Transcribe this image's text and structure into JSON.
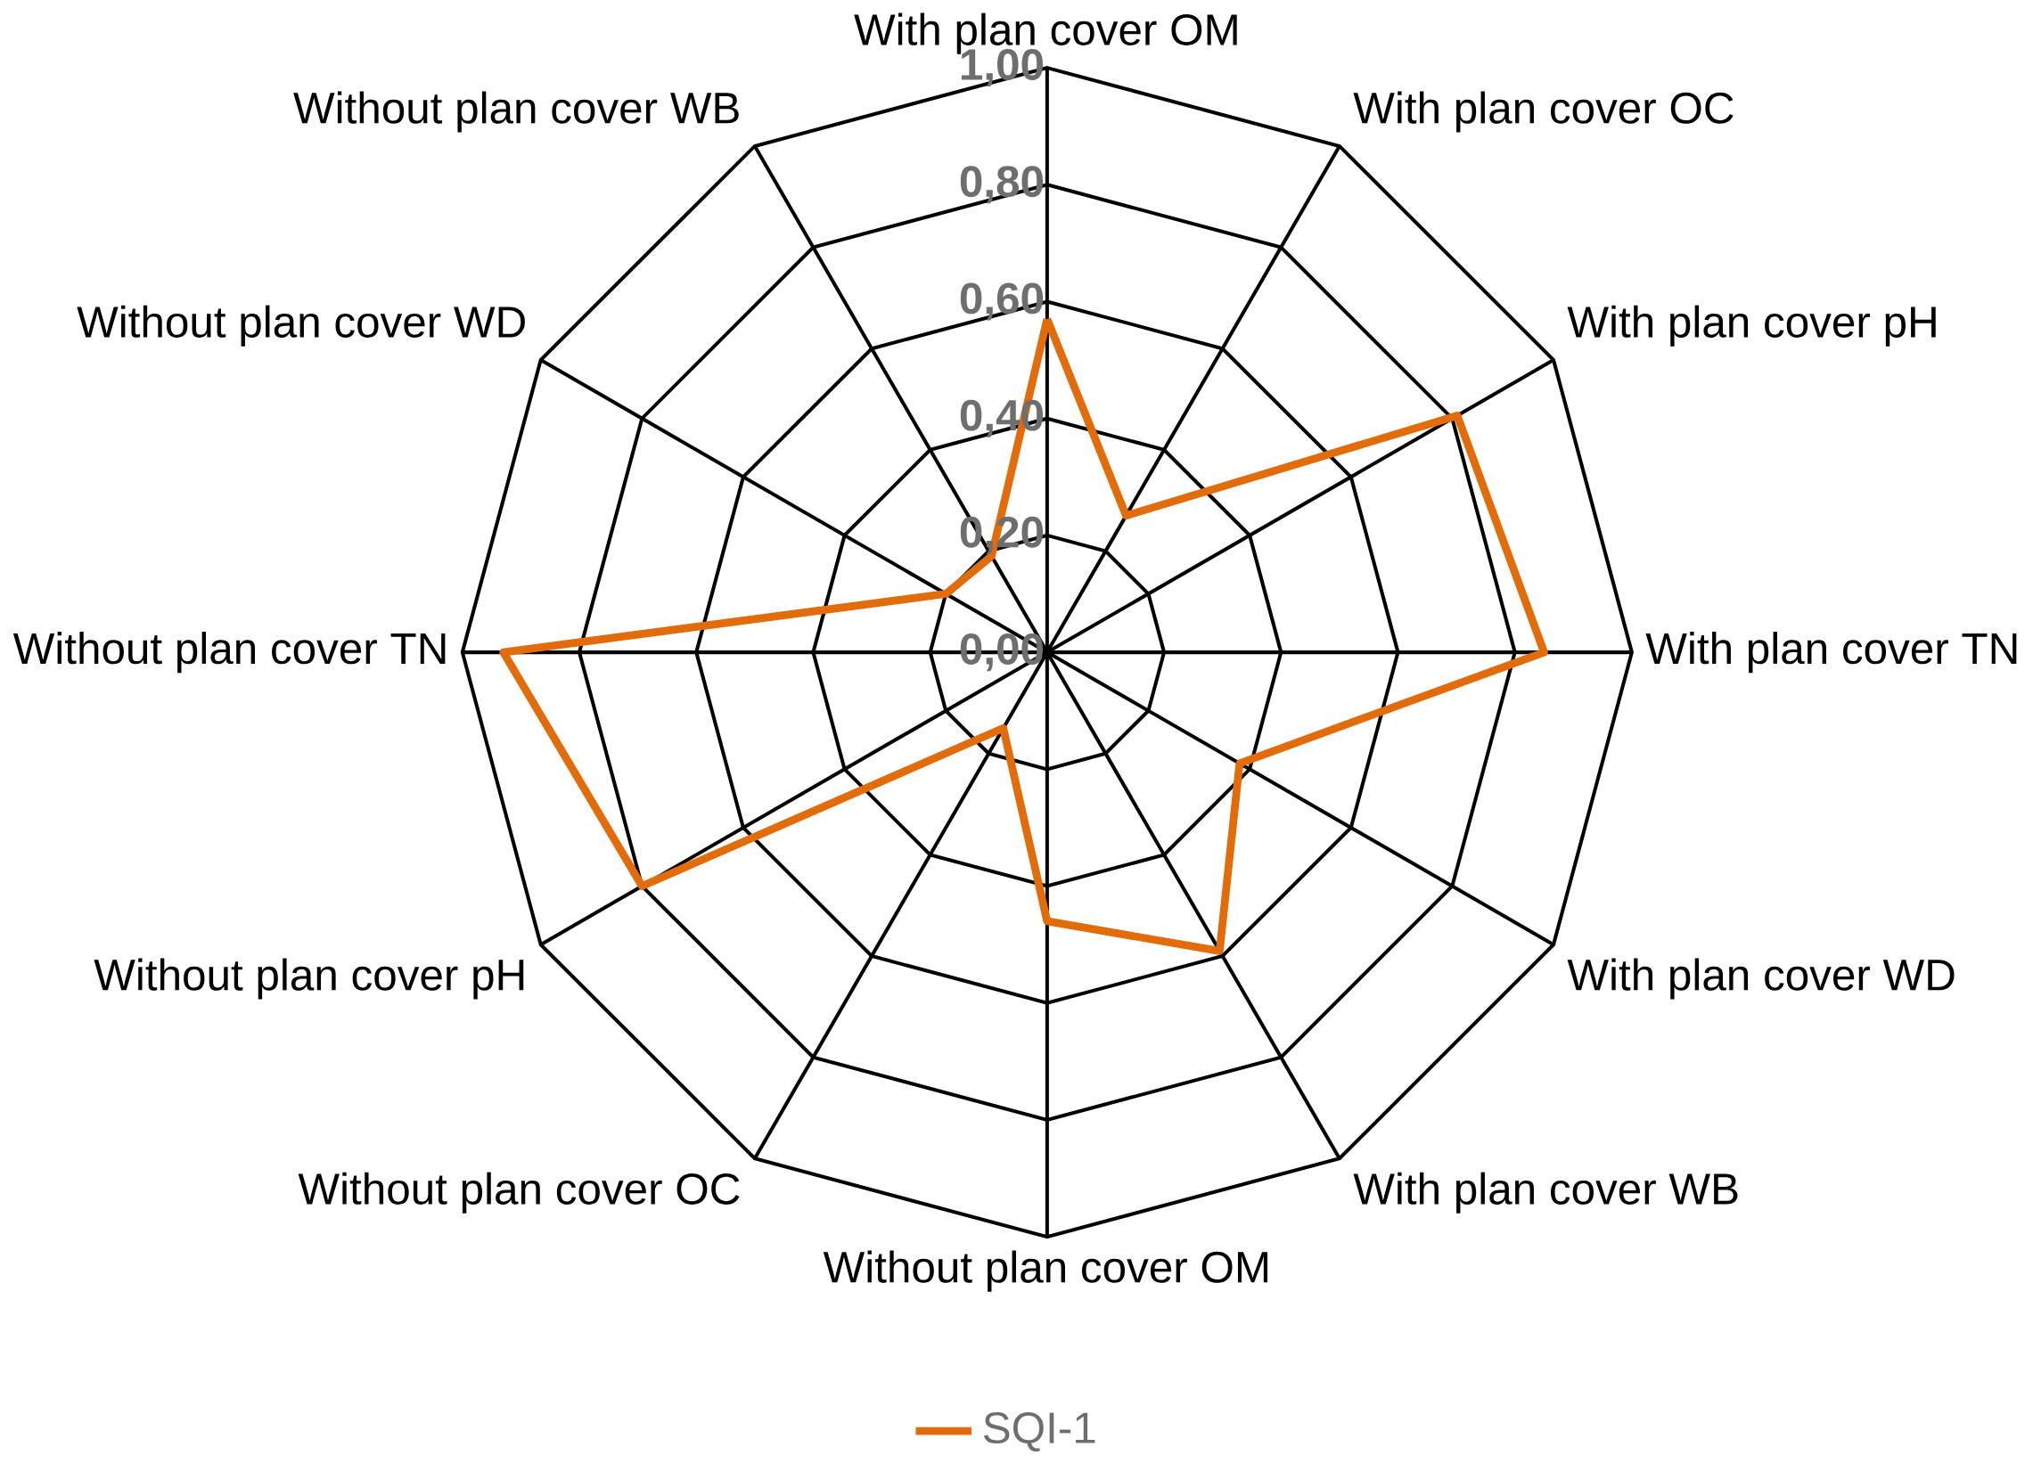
{
  "chart_data": {
    "type": "radar",
    "categories": [
      "With plan cover OM",
      "With plan cover OC",
      "With plan cover pH",
      "With plan cover TN",
      "With plan cover WD",
      "With plan cover WB",
      "Without plan cover OM",
      "Without plan cover OC",
      "Without plan cover pH",
      "Without plan cover TN",
      "Without plan cover WD",
      "Without plan cover WB"
    ],
    "series": [
      {
        "name": "SQI-1",
        "color": "#e26b0a",
        "values": [
          0.57,
          0.27,
          0.81,
          0.85,
          0.38,
          0.59,
          0.46,
          0.15,
          0.8,
          0.93,
          0.2,
          0.19
        ]
      }
    ],
    "ylim": [
      0,
      1
    ],
    "yticks": [
      {
        "value": 0,
        "label": "0,00"
      },
      {
        "value": 0.2,
        "label": "0,20"
      },
      {
        "value": 0.4,
        "label": "0,40"
      },
      {
        "value": 0.6,
        "label": "0,60"
      },
      {
        "value": 0.8,
        "label": "0,80"
      },
      {
        "value": 1,
        "label": "1,00"
      }
    ],
    "grid": true,
    "legend": "bottom"
  }
}
